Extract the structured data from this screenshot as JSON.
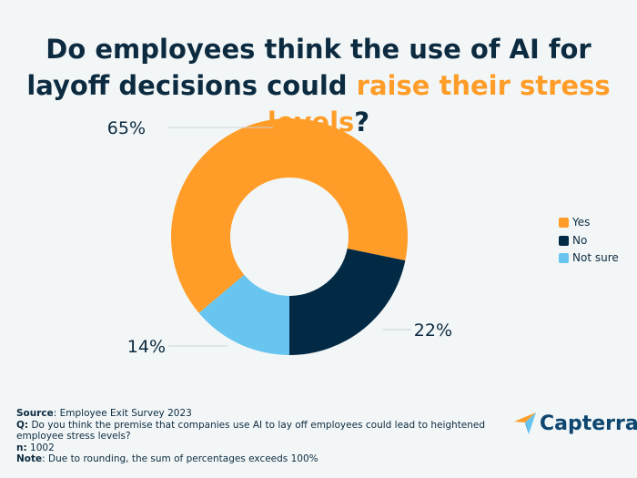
{
  "title": {
    "part1": "Do employees think the use of AI for layoff decisions could ",
    "highlight": "raise their stress levels",
    "part2": "?"
  },
  "chart_data": {
    "type": "pie",
    "donut": true,
    "categories": [
      "Yes",
      "No",
      "Not sure"
    ],
    "values": [
      65,
      22,
      14
    ],
    "labels": [
      "65%",
      "22%",
      "14%"
    ],
    "colors": [
      "#ff9d28",
      "#032a45",
      "#68c5f0"
    ],
    "legend_position": "right"
  },
  "footer": {
    "source_label": "Source",
    "source": ": Employee Exit Survey 2023",
    "q_label": "Q:",
    "q": " Do you think the premise that companies use AI to lay off employees could lead to heightened employee stress levels?",
    "n_label": "n:",
    "n": " 1002",
    "note_label": "Note",
    "note": ": Due to rounding, the sum of percentages exceeds 100%"
  },
  "logo": {
    "text": "Capterra"
  }
}
